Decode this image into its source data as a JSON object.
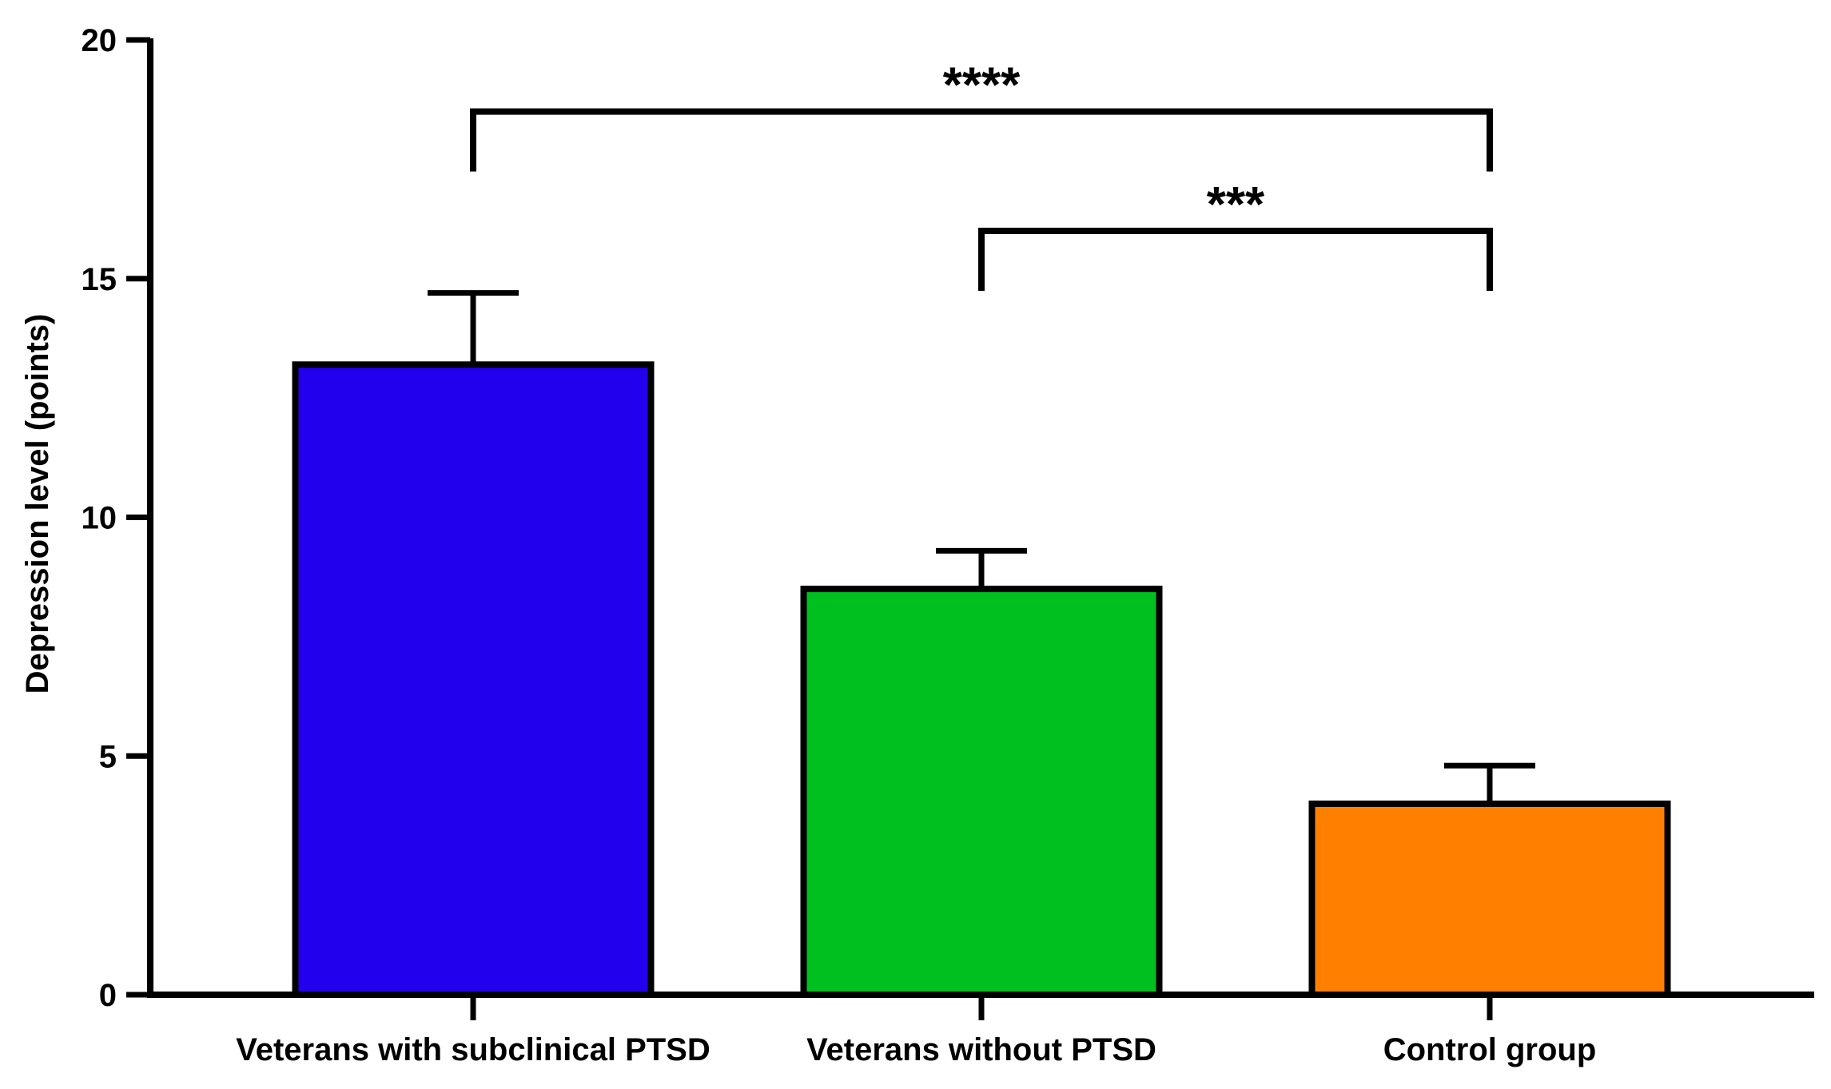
{
  "chart_data": {
    "type": "bar",
    "title": "",
    "xlabel": "",
    "ylabel": "Depression level (points)",
    "ylim": [
      0,
      20
    ],
    "yticks": [
      0,
      5,
      10,
      15,
      20
    ],
    "grid": false,
    "categories": [
      "Veterans with subclinical PTSD",
      "Veterans without PTSD",
      "Control group"
    ],
    "values": [
      13.2,
      8.5,
      4.0
    ],
    "error_upper": [
      14.7,
      9.3,
      4.8
    ],
    "colors": [
      "#2200ee",
      "#00c020",
      "#ff8000"
    ],
    "significance": [
      {
        "from": 0,
        "to": 2,
        "label": "****",
        "y": 18.5
      },
      {
        "from": 1,
        "to": 2,
        "label": "***",
        "y": 16.0
      }
    ]
  }
}
